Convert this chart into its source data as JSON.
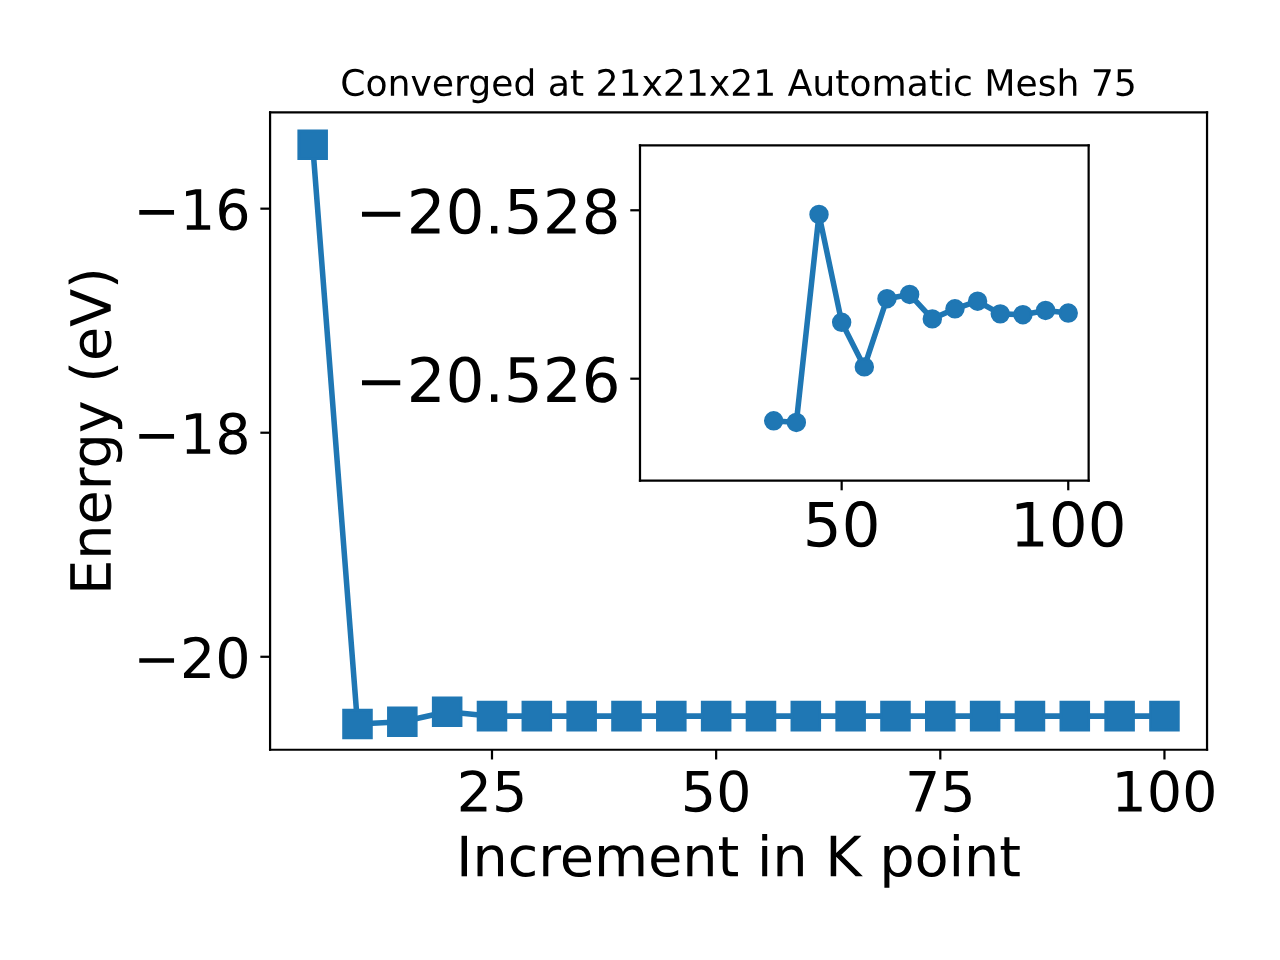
{
  "chart_data": [
    {
      "type": "line",
      "title": "Converged at 21x21x21 Automatic Mesh 75",
      "xlabel": "Increment in K point",
      "ylabel": "Energy (eV)",
      "x": [
        5,
        10,
        15,
        20,
        25,
        30,
        35,
        40,
        45,
        50,
        55,
        60,
        65,
        70,
        75,
        80,
        85,
        90,
        95,
        100
      ],
      "series": [
        {
          "color": "#1f77b4",
          "values": [
            -15.43,
            -20.6,
            -20.58,
            -20.49,
            -20.53,
            -20.53,
            -20.53,
            -20.53,
            -20.53,
            -20.53,
            -20.53,
            -20.53,
            -20.53,
            -20.53,
            -20.53,
            -20.53,
            -20.53,
            -20.53,
            -20.53,
            -20.53
          ]
        }
      ],
      "marker": "square",
      "xlim": [
        0.25,
        104.75
      ],
      "ylim": [
        -20.83,
        -15.14
      ],
      "xticks": [
        25,
        50,
        75,
        100
      ],
      "yticks": [
        {
          "value": -20,
          "label": "−20"
        },
        {
          "value": -18,
          "label": "−18"
        },
        {
          "value": -16,
          "label": "−16"
        }
      ],
      "grid": false,
      "legend": false
    },
    {
      "type": "line",
      "x": [
        35,
        40,
        45,
        50,
        55,
        60,
        65,
        70,
        75,
        80,
        85,
        90,
        95,
        100
      ],
      "series": [
        {
          "color": "#1f77b4",
          "values": [
            -20.5255,
            -20.52548,
            -20.52795,
            -20.52667,
            -20.52614,
            -20.52695,
            -20.527,
            -20.52671,
            -20.52683,
            -20.52692,
            -20.52677,
            -20.52676,
            -20.52681,
            -20.52678
          ]
        }
      ],
      "marker": "circle",
      "xlim": [
        5.5,
        104.5
      ],
      "ylim": [
        -20.52479,
        -20.52877
      ],
      "xticks": [
        50,
        100
      ],
      "yticks": [
        {
          "value": -20.528,
          "label": "−20.528"
        },
        {
          "value": -20.526,
          "label": "−20.526"
        }
      ],
      "grid": false,
      "legend": false
    }
  ]
}
